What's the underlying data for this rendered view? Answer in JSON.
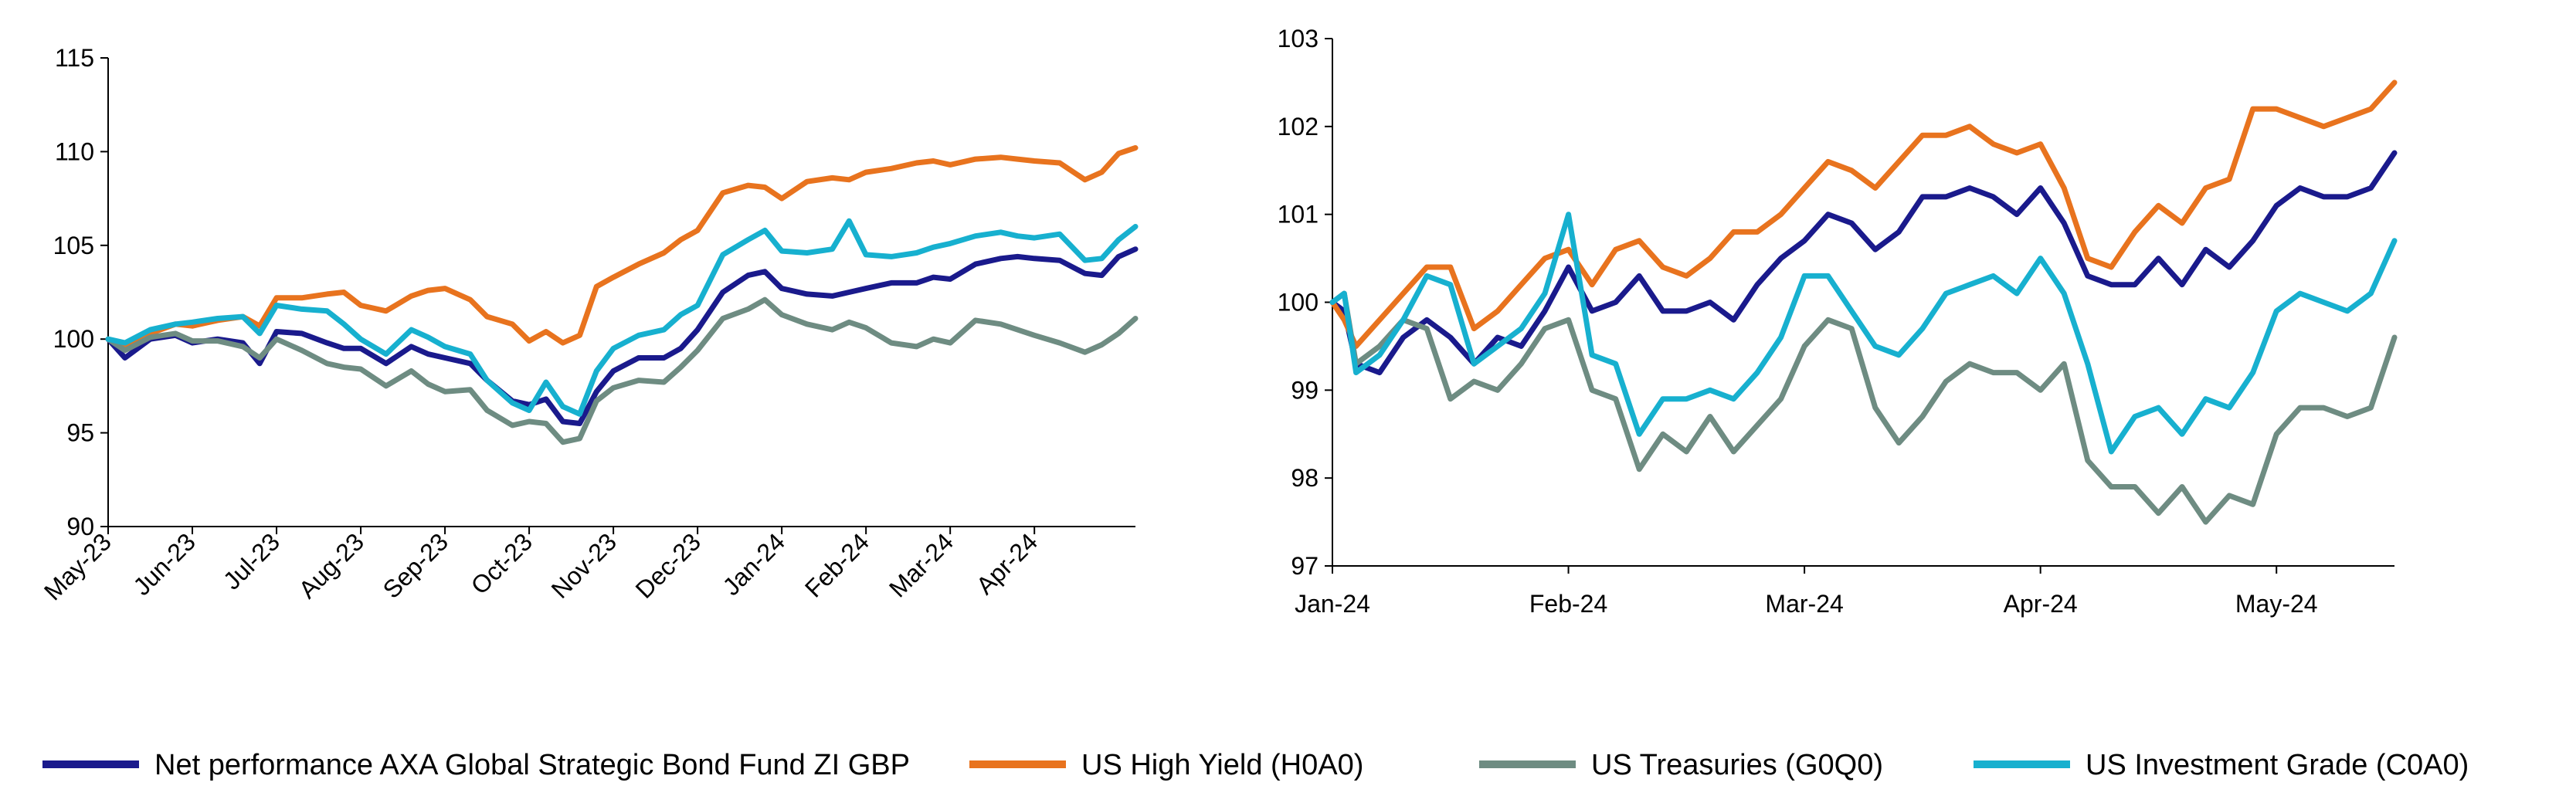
{
  "legend": [
    {
      "label": "Net performance AXA Global Strategic Bond Fund ZI GBP",
      "color": "#1a1a8c"
    },
    {
      "label": "US High Yield (H0A0)",
      "color": "#e8731e"
    },
    {
      "label": "US Treasuries (G0Q0)",
      "color": "#6e8c82"
    },
    {
      "label": "US Investment Grade (C0A0)",
      "color": "#17b0cf"
    }
  ],
  "chart_data": [
    {
      "type": "line",
      "ylim": [
        90,
        115
      ],
      "yticks": [
        "90",
        "95",
        "100",
        "105",
        "110",
        "115"
      ],
      "xticks": [
        "May-23",
        "Jun-23",
        "Jul-23",
        "Aug-23",
        "Sep-23",
        "Oct-23",
        "Nov-23",
        "Dec-23",
        "Jan-24",
        "Feb-24",
        "Mar-24",
        "Apr-24"
      ],
      "xlim": [
        0,
        12.2
      ],
      "series": [
        {
          "name": "Net performance AXA Global Strategic Bond Fund ZI GBP",
          "color": "#1a1a8c",
          "x": [
            0,
            0.2,
            0.5,
            0.8,
            1.0,
            1.3,
            1.6,
            1.8,
            2.0,
            2.3,
            2.6,
            2.8,
            3.0,
            3.3,
            3.6,
            3.8,
            4.0,
            4.3,
            4.5,
            4.8,
            5.0,
            5.2,
            5.4,
            5.6,
            5.8,
            6.0,
            6.3,
            6.6,
            6.8,
            7.0,
            7.3,
            7.6,
            7.8,
            8.0,
            8.3,
            8.6,
            8.8,
            9.0,
            9.3,
            9.6,
            9.8,
            10.0,
            10.3,
            10.6,
            10.8,
            11.0,
            11.3,
            11.6,
            11.8,
            12.0,
            12.2
          ],
          "values": [
            100,
            99,
            100,
            100.2,
            99.8,
            100,
            99.8,
            98.7,
            100.4,
            100.3,
            99.8,
            99.5,
            99.5,
            98.7,
            99.6,
            99.2,
            99,
            98.7,
            97.8,
            96.7,
            96.5,
            96.8,
            95.6,
            95.5,
            97.2,
            98.3,
            99,
            99,
            99.5,
            100.5,
            102.5,
            103.4,
            103.6,
            102.7,
            102.4,
            102.3,
            102.5,
            102.7,
            103,
            103,
            103.3,
            103.2,
            104,
            104.3,
            104.4,
            104.3,
            104.2,
            103.5,
            103.4,
            104.4,
            104.8
          ]
        },
        {
          "name": "US High Yield (H0A0)",
          "color": "#e8731e",
          "x": [
            0,
            0.2,
            0.5,
            0.8,
            1.0,
            1.3,
            1.6,
            1.8,
            2.0,
            2.3,
            2.6,
            2.8,
            3.0,
            3.3,
            3.6,
            3.8,
            4.0,
            4.3,
            4.5,
            4.8,
            5.0,
            5.2,
            5.4,
            5.6,
            5.8,
            6.0,
            6.3,
            6.6,
            6.8,
            7.0,
            7.3,
            7.6,
            7.8,
            8.0,
            8.3,
            8.6,
            8.8,
            9.0,
            9.3,
            9.6,
            9.8,
            10.0,
            10.3,
            10.6,
            10.8,
            11.0,
            11.3,
            11.6,
            11.8,
            12.0,
            12.2
          ],
          "values": [
            100,
            99.5,
            100.3,
            100.8,
            100.7,
            101,
            101.2,
            100.7,
            102.2,
            102.2,
            102.4,
            102.5,
            101.8,
            101.5,
            102.3,
            102.6,
            102.7,
            102.1,
            101.2,
            100.8,
            99.9,
            100.4,
            99.8,
            100.2,
            102.8,
            103.3,
            104,
            104.6,
            105.3,
            105.8,
            107.8,
            108.2,
            108.1,
            107.5,
            108.4,
            108.6,
            108.5,
            108.9,
            109.1,
            109.4,
            109.5,
            109.3,
            109.6,
            109.7,
            109.6,
            109.5,
            109.4,
            108.5,
            108.9,
            109.9,
            110.2
          ]
        },
        {
          "name": "US Treasuries (G0Q0)",
          "color": "#6e8c82",
          "x": [
            0,
            0.2,
            0.5,
            0.8,
            1.0,
            1.3,
            1.6,
            1.8,
            2.0,
            2.3,
            2.6,
            2.8,
            3.0,
            3.3,
            3.6,
            3.8,
            4.0,
            4.3,
            4.5,
            4.8,
            5.0,
            5.2,
            5.4,
            5.6,
            5.8,
            6.0,
            6.3,
            6.6,
            6.8,
            7.0,
            7.3,
            7.6,
            7.8,
            8.0,
            8.3,
            8.6,
            8.8,
            9.0,
            9.3,
            9.6,
            9.8,
            10.0,
            10.3,
            10.6,
            10.8,
            11.0,
            11.3,
            11.6,
            11.8,
            12.0,
            12.2
          ],
          "values": [
            100,
            99.4,
            100.1,
            100.3,
            99.9,
            99.9,
            99.6,
            99,
            100,
            99.4,
            98.7,
            98.5,
            98.4,
            97.5,
            98.3,
            97.6,
            97.2,
            97.3,
            96.2,
            95.4,
            95.6,
            95.5,
            94.5,
            94.7,
            96.7,
            97.4,
            97.8,
            97.7,
            98.5,
            99.4,
            101.1,
            101.6,
            102.1,
            101.3,
            100.8,
            100.5,
            100.9,
            100.6,
            99.8,
            99.6,
            100,
            99.8,
            101,
            100.8,
            100.5,
            100.2,
            99.8,
            99.3,
            99.7,
            100.3,
            101.1
          ]
        },
        {
          "name": "US Investment Grade (C0A0)",
          "color": "#17b0cf",
          "x": [
            0,
            0.2,
            0.5,
            0.8,
            1.0,
            1.3,
            1.6,
            1.8,
            2.0,
            2.3,
            2.6,
            2.8,
            3.0,
            3.3,
            3.6,
            3.8,
            4.0,
            4.3,
            4.5,
            4.8,
            5.0,
            5.2,
            5.4,
            5.6,
            5.8,
            6.0,
            6.3,
            6.6,
            6.8,
            7.0,
            7.3,
            7.6,
            7.8,
            8.0,
            8.3,
            8.6,
            8.8,
            9.0,
            9.3,
            9.6,
            9.8,
            10.0,
            10.3,
            10.6,
            10.8,
            11.0,
            11.3,
            11.6,
            11.8,
            12.0,
            12.2
          ],
          "values": [
            100,
            99.8,
            100.5,
            100.8,
            100.9,
            101.1,
            101.2,
            100.3,
            101.8,
            101.6,
            101.5,
            100.8,
            100,
            99.2,
            100.5,
            100.1,
            99.6,
            99.2,
            97.8,
            96.6,
            96.2,
            97.7,
            96.4,
            96,
            98.3,
            99.5,
            100.2,
            100.5,
            101.3,
            101.8,
            104.5,
            105.3,
            105.8,
            104.7,
            104.6,
            104.8,
            106.3,
            104.5,
            104.4,
            104.6,
            104.9,
            105.1,
            105.5,
            105.7,
            105.5,
            105.4,
            105.6,
            104.2,
            104.3,
            105.3,
            106
          ]
        }
      ]
    },
    {
      "type": "line",
      "ylim": [
        97,
        103
      ],
      "yticks": [
        "97",
        "98",
        "99",
        "100",
        "101",
        "102",
        "103"
      ],
      "xticks": [
        "Jan-24",
        "Feb-24",
        "Mar-24",
        "Apr-24",
        "May-24"
      ],
      "xlim": [
        0,
        4.5
      ],
      "series": [
        {
          "name": "Net performance AXA Global Strategic Bond Fund ZI GBP",
          "color": "#1a1a8c",
          "x": [
            0,
            0.05,
            0.1,
            0.2,
            0.3,
            0.4,
            0.5,
            0.6,
            0.7,
            0.8,
            0.9,
            1.0,
            1.1,
            1.2,
            1.3,
            1.4,
            1.5,
            1.6,
            1.7,
            1.8,
            1.9,
            2.0,
            2.1,
            2.2,
            2.3,
            2.4,
            2.5,
            2.6,
            2.7,
            2.8,
            2.9,
            3.0,
            3.1,
            3.2,
            3.3,
            3.4,
            3.5,
            3.6,
            3.7,
            3.8,
            3.9,
            4.0,
            4.1,
            4.2,
            4.3,
            4.4,
            4.5
          ],
          "values": [
            100,
            99.9,
            99.3,
            99.2,
            99.6,
            99.8,
            99.6,
            99.3,
            99.6,
            99.5,
            99.9,
            100.4,
            99.9,
            100,
            100.3,
            99.9,
            99.9,
            100,
            99.8,
            100.2,
            100.5,
            100.7,
            101,
            100.9,
            100.6,
            100.8,
            101.2,
            101.2,
            101.3,
            101.2,
            101,
            101.3,
            100.9,
            100.3,
            100.2,
            100.2,
            100.5,
            100.2,
            100.6,
            100.4,
            100.7,
            101.1,
            101.3,
            101.2,
            101.2,
            101.3,
            101.7
          ]
        },
        {
          "name": "US High Yield (H0A0)",
          "color": "#e8731e",
          "x": [
            0,
            0.05,
            0.1,
            0.2,
            0.3,
            0.4,
            0.5,
            0.6,
            0.7,
            0.8,
            0.9,
            1.0,
            1.1,
            1.2,
            1.3,
            1.4,
            1.5,
            1.6,
            1.7,
            1.8,
            1.9,
            2.0,
            2.1,
            2.2,
            2.3,
            2.4,
            2.5,
            2.6,
            2.7,
            2.8,
            2.9,
            3.0,
            3.1,
            3.2,
            3.3,
            3.4,
            3.5,
            3.6,
            3.7,
            3.8,
            3.9,
            4.0,
            4.1,
            4.2,
            4.3,
            4.4,
            4.5
          ],
          "values": [
            100,
            99.8,
            99.5,
            99.8,
            100.1,
            100.4,
            100.4,
            99.7,
            99.9,
            100.2,
            100.5,
            100.6,
            100.2,
            100.6,
            100.7,
            100.4,
            100.3,
            100.5,
            100.8,
            100.8,
            101,
            101.3,
            101.6,
            101.5,
            101.3,
            101.6,
            101.9,
            101.9,
            102,
            101.8,
            101.7,
            101.8,
            101.3,
            100.5,
            100.4,
            100.8,
            101.1,
            100.9,
            101.3,
            101.4,
            102.2,
            102.2,
            102.1,
            102,
            102.1,
            102.2,
            102.5
          ]
        },
        {
          "name": "US Treasuries (G0Q0)",
          "color": "#6e8c82",
          "x": [
            0,
            0.05,
            0.1,
            0.2,
            0.3,
            0.4,
            0.5,
            0.6,
            0.7,
            0.8,
            0.9,
            1.0,
            1.1,
            1.2,
            1.3,
            1.4,
            1.5,
            1.6,
            1.7,
            1.8,
            1.9,
            2.0,
            2.1,
            2.2,
            2.3,
            2.4,
            2.5,
            2.6,
            2.7,
            2.8,
            2.9,
            3.0,
            3.1,
            3.2,
            3.3,
            3.4,
            3.5,
            3.6,
            3.7,
            3.8,
            3.9,
            4.0,
            4.1,
            4.2,
            4.3,
            4.4,
            4.5
          ],
          "values": [
            100,
            100.1,
            99.3,
            99.5,
            99.8,
            99.7,
            98.9,
            99.1,
            99,
            99.3,
            99.7,
            99.8,
            99,
            98.9,
            98.1,
            98.5,
            98.3,
            98.7,
            98.3,
            98.6,
            98.9,
            99.5,
            99.8,
            99.7,
            98.8,
            98.4,
            98.7,
            99.1,
            99.3,
            99.2,
            99.2,
            99,
            99.3,
            98.2,
            97.9,
            97.9,
            97.6,
            97.9,
            97.5,
            97.8,
            97.7,
            98.5,
            98.8,
            98.8,
            98.7,
            98.8,
            99.6
          ]
        },
        {
          "name": "US Investment Grade (C0A0)",
          "color": "#17b0cf",
          "x": [
            0,
            0.05,
            0.1,
            0.2,
            0.3,
            0.4,
            0.5,
            0.6,
            0.7,
            0.8,
            0.9,
            1.0,
            1.1,
            1.2,
            1.3,
            1.4,
            1.5,
            1.6,
            1.7,
            1.8,
            1.9,
            2.0,
            2.1,
            2.2,
            2.3,
            2.4,
            2.5,
            2.6,
            2.7,
            2.8,
            2.9,
            3.0,
            3.1,
            3.2,
            3.3,
            3.4,
            3.5,
            3.6,
            3.7,
            3.8,
            3.9,
            4.0,
            4.1,
            4.2,
            4.3,
            4.4,
            4.5
          ],
          "values": [
            100,
            100.1,
            99.2,
            99.4,
            99.8,
            100.3,
            100.2,
            99.3,
            99.5,
            99.7,
            100.1,
            101,
            99.4,
            99.3,
            98.5,
            98.9,
            98.9,
            99,
            98.9,
            99.2,
            99.6,
            100.3,
            100.3,
            99.9,
            99.5,
            99.4,
            99.7,
            100.1,
            100.2,
            100.3,
            100.1,
            100.5,
            100.1,
            99.3,
            98.3,
            98.7,
            98.8,
            98.5,
            98.9,
            98.8,
            99.2,
            99.9,
            100.1,
            100,
            99.9,
            100.1,
            100.7
          ]
        }
      ]
    }
  ]
}
